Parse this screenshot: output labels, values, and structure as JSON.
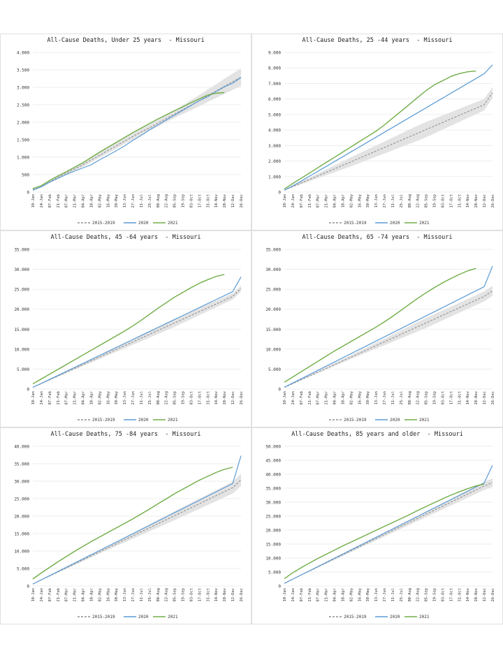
{
  "colors": {
    "baseline": "#909090",
    "y2020": "#5b9bd5",
    "y2021": "#70ad47",
    "band": "#e3e3e3",
    "grid": "#e9e9e9"
  },
  "legend": [
    "2015-2019",
    "2020",
    "2021"
  ],
  "x_tick_labels": [
    "10-Jan",
    "24-Jan",
    "07-Feb",
    "21-Feb",
    "07-Mar",
    "21-Mar",
    "04-Apr",
    "18-Apr",
    "02-May",
    "16-May",
    "30-May",
    "13-Jun",
    "27-Jun",
    "11-Jul",
    "25-Jul",
    "08-Aug",
    "22-Aug",
    "05-Sep",
    "19-Sep",
    "03-Oct",
    "17-Oct",
    "31-Oct",
    "14-Nov",
    "28-Nov",
    "12-Dec",
    "26-Dec"
  ],
  "chart_data": [
    {
      "type": "line",
      "title": "All-Cause Deaths, Under 25 years  - Missouri",
      "ylim": [
        0,
        4000
      ],
      "yticks": [
        0,
        500,
        1000,
        1500,
        2000,
        2500,
        3000,
        3500,
        4000
      ],
      "ytick_labels": [
        "0",
        "500",
        "1.000",
        "1.500",
        "2.000",
        "2.500",
        "3.000",
        "3.500",
        "4.000"
      ],
      "baseline_range": [
        [
          60,
          90
        ],
        [
          1050,
          1200
        ],
        [
          2000,
          2200
        ],
        [
          2900,
          3400
        ]
      ],
      "series": [
        {
          "name": "2015-2019",
          "values": [
            70,
            150,
            290,
            420,
            540,
            660,
            780,
            920,
            1050,
            1190,
            1320,
            1460,
            1590,
            1720,
            1840,
            1970,
            2100,
            2230,
            2360,
            2490,
            2620,
            2760,
            2890,
            3030,
            3160,
            3290
          ]
        },
        {
          "name": "2020",
          "values": [
            50,
            150,
            280,
            390,
            500,
            600,
            690,
            780,
            920,
            1050,
            1180,
            1320,
            1480,
            1620,
            1780,
            1920,
            2060,
            2200,
            2340,
            2480,
            2620,
            2730,
            2880,
            3010,
            3120,
            3280
          ]
        },
        {
          "name": "2021",
          "values": [
            100,
            180,
            330,
            460,
            580,
            710,
            840,
            990,
            1140,
            1280,
            1420,
            1560,
            1700,
            1830,
            1960,
            2090,
            2210,
            2330,
            2440,
            2560,
            2670,
            2780,
            2830,
            2850
          ]
        }
      ]
    },
    {
      "type": "line",
      "title": "All-Cause Deaths, 25 -44 years  - Missouri",
      "ylim": [
        0,
        9000
      ],
      "yticks": [
        0,
        1000,
        2000,
        3000,
        4000,
        5000,
        6000,
        7000,
        8000,
        9000
      ],
      "ytick_labels": [
        "0",
        "1.000",
        "2.000",
        "3.000",
        "4.000",
        "5.000",
        "6.000",
        "7.000",
        "8.000",
        "9.000"
      ],
      "baseline_range": [
        [
          100,
          140
        ],
        [
          2700,
          3300
        ],
        [
          4900,
          5900
        ],
        [
          6100,
          6800
        ]
      ],
      "series": [
        {
          "name": "2015-2019",
          "values": [
            120,
            350,
            580,
            810,
            1040,
            1270,
            1490,
            1720,
            1950,
            2180,
            2410,
            2640,
            2870,
            3100,
            3330,
            3560,
            3790,
            4020,
            4250,
            4480,
            4710,
            4940,
            5170,
            5400,
            5630,
            6400
          ]
        },
        {
          "name": "2020",
          "values": [
            120,
            400,
            700,
            1020,
            1330,
            1640,
            1960,
            2270,
            2590,
            2900,
            3220,
            3530,
            3850,
            4160,
            4480,
            4790,
            5110,
            5420,
            5740,
            6050,
            6370,
            6680,
            7000,
            7310,
            7630,
            8200
          ]
        },
        {
          "name": "2021",
          "values": [
            200,
            550,
            880,
            1220,
            1560,
            1900,
            2230,
            2570,
            2910,
            3250,
            3580,
            3920,
            4320,
            4760,
            5200,
            5640,
            6090,
            6530,
            6900,
            7170,
            7450,
            7630,
            7750,
            7800
          ]
        }
      ]
    },
    {
      "type": "line",
      "title": "All-Cause Deaths, 45 -64 years  - Missouri",
      "ylim": [
        0,
        35000
      ],
      "yticks": [
        0,
        5000,
        10000,
        15000,
        20000,
        25000,
        30000,
        35000
      ],
      "ytick_labels": [
        "0",
        "5.000",
        "10.000",
        "15.000",
        "20.000",
        "25.000",
        "30.000",
        "35.000"
      ],
      "baseline_range": [
        [
          350,
          450
        ],
        [
          11000,
          12000
        ],
        [
          20500,
          22500
        ],
        [
          24500,
          26000
        ]
      ],
      "series": [
        {
          "name": "2015-2019",
          "values": [
            400,
            1350,
            2300,
            3250,
            4200,
            5150,
            6100,
            7050,
            8000,
            8950,
            9900,
            10850,
            11800,
            12750,
            13700,
            14650,
            15600,
            16550,
            17500,
            18450,
            19400,
            20350,
            21300,
            22250,
            23200,
            25200
          ]
        },
        {
          "name": "2020",
          "values": [
            400,
            1400,
            2400,
            3400,
            4400,
            5400,
            6400,
            7400,
            8400,
            9400,
            10400,
            11400,
            12400,
            13400,
            14400,
            15400,
            16400,
            17400,
            18400,
            19400,
            20400,
            21400,
            22400,
            23400,
            24400,
            28100
          ]
        },
        {
          "name": "2021",
          "values": [
            1300,
            2500,
            3700,
            4900,
            6100,
            7300,
            8500,
            9700,
            10900,
            12100,
            13300,
            14500,
            15800,
            17200,
            18700,
            20200,
            21600,
            23000,
            24200,
            25400,
            26500,
            27400,
            28200,
            28700
          ]
        }
      ]
    },
    {
      "type": "line",
      "title": "All-Cause Deaths, 65 -74 years  - Missouri",
      "ylim": [
        0,
        35000
      ],
      "yticks": [
        0,
        5000,
        10000,
        15000,
        20000,
        25000,
        30000,
        35000
      ],
      "ytick_labels": [
        "0",
        "5.000",
        "10.000",
        "15.000",
        "20.000",
        "25.000",
        "30.000",
        "35.000"
      ],
      "baseline_range": [
        [
          350,
          450
        ],
        [
          11000,
          12000
        ],
        [
          20000,
          22500
        ],
        [
          23500,
          26000
        ]
      ],
      "series": [
        {
          "name": "2015-2019",
          "values": [
            400,
            1350,
            2300,
            3250,
            4200,
            5150,
            6100,
            7050,
            8000,
            8950,
            9900,
            10850,
            11800,
            12750,
            13700,
            14650,
            15600,
            16550,
            17500,
            18450,
            19400,
            20350,
            21300,
            22250,
            23200,
            24600
          ]
        },
        {
          "name": "2020",
          "values": [
            450,
            1500,
            2550,
            3600,
            4650,
            5700,
            6750,
            7800,
            8850,
            9900,
            10950,
            12000,
            13050,
            14100,
            15150,
            16200,
            17250,
            18300,
            19350,
            20400,
            21450,
            22500,
            23550,
            24600,
            25650,
            30800
          ]
        },
        {
          "name": "2021",
          "values": [
            1700,
            3000,
            4300,
            5600,
            6900,
            8200,
            9500,
            10700,
            11900,
            13100,
            14300,
            15500,
            16800,
            18200,
            19700,
            21200,
            22700,
            24100,
            25400,
            26600,
            27700,
            28700,
            29600,
            30200
          ]
        }
      ]
    },
    {
      "type": "line",
      "title": "All-Cause Deaths, 75 -84 years  - Missouri",
      "ylim": [
        0,
        40000
      ],
      "yticks": [
        0,
        5000,
        10000,
        15000,
        20000,
        25000,
        30000,
        35000,
        40000
      ],
      "ytick_labels": [
        "0",
        "5.000",
        "10.000",
        "15.000",
        "20.000",
        "25.000",
        "30.000",
        "35.000",
        "40.000"
      ],
      "baseline_range": [
        [
          500,
          600
        ],
        [
          13500,
          14500
        ],
        [
          24000,
          26500
        ],
        [
          28500,
          32000
        ]
      ],
      "series": [
        {
          "name": "2015-2019",
          "values": [
            550,
            1700,
            2850,
            4000,
            5150,
            6300,
            7450,
            8600,
            9750,
            10900,
            12050,
            13200,
            14350,
            15500,
            16650,
            17800,
            18950,
            20100,
            21250,
            22400,
            23550,
            24700,
            25850,
            27000,
            28150,
            30400
          ]
        },
        {
          "name": "2020",
          "values": [
            550,
            1750,
            2950,
            4150,
            5350,
            6550,
            7750,
            8950,
            10150,
            11350,
            12550,
            13750,
            14950,
            16150,
            17350,
            18550,
            19750,
            20950,
            22150,
            23350,
            24550,
            25750,
            26950,
            28150,
            29350,
            37300
          ]
        },
        {
          "name": "2021",
          "values": [
            2000,
            3700,
            5300,
            6900,
            8400,
            9900,
            11300,
            12700,
            14000,
            15300,
            16600,
            17900,
            19200,
            20600,
            22000,
            23500,
            24900,
            26400,
            27700,
            29000,
            30300,
            31400,
            32500,
            33400,
            34000
          ]
        }
      ]
    },
    {
      "type": "line",
      "title": "All-Cause Deaths, 85 years and older  - Missouri",
      "ylim": [
        0,
        50000
      ],
      "yticks": [
        0,
        5000,
        10000,
        15000,
        20000,
        25000,
        30000,
        35000,
        40000,
        45000,
        50000
      ],
      "ytick_labels": [
        "0",
        "5.000",
        "10.000",
        "15.000",
        "20.000",
        "25.000",
        "30.000",
        "35.000",
        "40.000",
        "45.000",
        "50.000"
      ],
      "baseline_range": [
        [
          900,
          1100
        ],
        [
          18000,
          19000
        ],
        [
          29500,
          31500
        ],
        [
          35500,
          38500
        ]
      ],
      "series": [
        {
          "name": "2015-2019",
          "values": [
            1000,
            2450,
            3900,
            5350,
            6800,
            8250,
            9700,
            11150,
            12600,
            14050,
            15500,
            16950,
            18400,
            19850,
            21300,
            22750,
            24200,
            25650,
            27100,
            28550,
            30000,
            31450,
            32900,
            34350,
            35800,
            37000
          ]
        },
        {
          "name": "2020",
          "values": [
            900,
            2400,
            3900,
            5400,
            6900,
            8400,
            9900,
            11400,
            12900,
            14400,
            15900,
            17400,
            18900,
            20400,
            21900,
            23400,
            24900,
            26400,
            27900,
            29400,
            30900,
            32400,
            33900,
            35400,
            36900,
            43200
          ]
        },
        {
          "name": "2021",
          "values": [
            2600,
            4700,
            6500,
            8200,
            9800,
            11300,
            12800,
            14300,
            15700,
            17100,
            18500,
            19900,
            21300,
            22700,
            24100,
            25500,
            27000,
            28400,
            29800,
            31200,
            32500,
            33700,
            34800,
            35800,
            36500
          ]
        }
      ]
    }
  ]
}
